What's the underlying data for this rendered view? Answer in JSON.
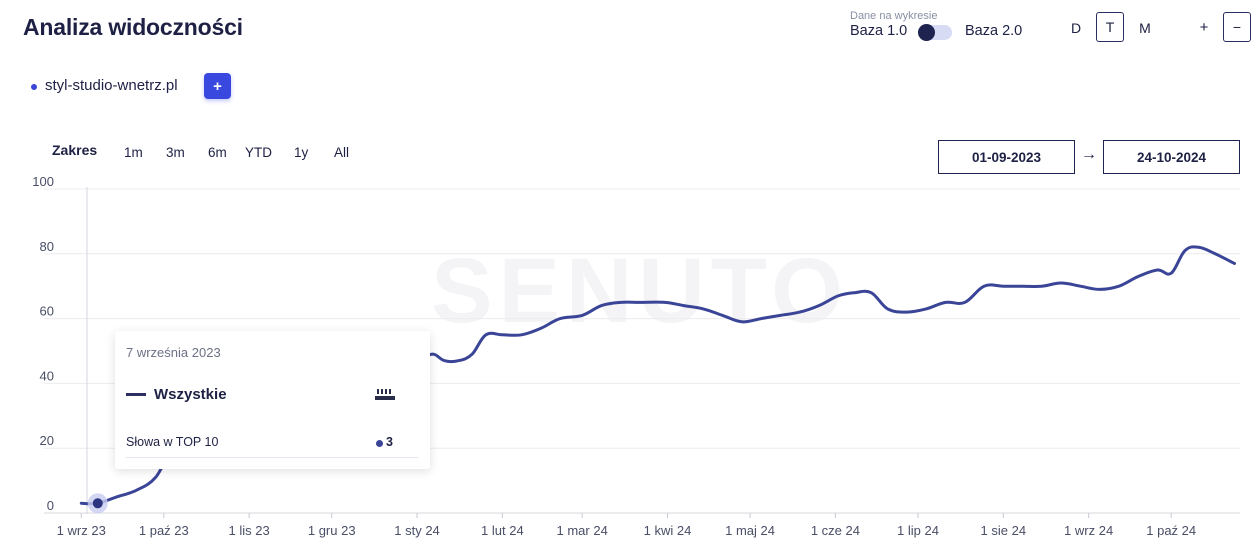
{
  "header": {
    "title": "Analiza widoczności",
    "data_on_chart_label": "Dane na wykresie",
    "base1_label": "Baza 1.0",
    "base2_label": "Baza 2.0",
    "granularity": {
      "d": "D",
      "t": "T",
      "m": "M",
      "selected": "T"
    },
    "zoom_in": "+",
    "zoom_out": "−"
  },
  "domain": {
    "name": "styl-studio-wnetrz.pl",
    "dot_color": "#3b46d8",
    "add_label": "+"
  },
  "range": {
    "label": "Zakres",
    "options": [
      "1m",
      "3m",
      "6m",
      "YTD",
      "1y",
      "All"
    ],
    "date_from": "01-09-2023",
    "date_to": "24-10-2024",
    "arrow": "→"
  },
  "tooltip": {
    "date": "7 września 2023",
    "series_name": "Wszystkie",
    "metric_label": "Słowa w TOP 10",
    "metric_value": "3"
  },
  "chart_data": {
    "type": "line",
    "ylim": [
      0,
      100
    ],
    "y_ticks": [
      0,
      20,
      40,
      60,
      80,
      100
    ],
    "x_tick_labels": [
      "1 wrz 23",
      "1 paź 23",
      "1 lis 23",
      "1 gru 23",
      "1 sty 24",
      "1 lut 24",
      "1 mar 24",
      "1 kwi 24",
      "1 maj 24",
      "1 cze 24",
      "1 lip 24",
      "1 sie 24",
      "1 wrz 24",
      "1 paź 24"
    ],
    "grid": true,
    "line_color": "#3a4597",
    "watermark": "SENUTO",
    "series": [
      {
        "name": "Wszystkie",
        "x": [
          "2023-09-01",
          "2023-09-07",
          "2023-09-14",
          "2023-09-21",
          "2023-09-28",
          "2023-10-04",
          "2023-10-10",
          "2023-10-16",
          "2023-10-22",
          "2023-10-28",
          "2023-11-03",
          "2023-11-09",
          "2023-11-15",
          "2023-11-22",
          "2023-11-29",
          "2023-12-06",
          "2023-12-13",
          "2023-12-20",
          "2023-12-27",
          "2024-01-03",
          "2024-01-07",
          "2024-01-11",
          "2024-01-16",
          "2024-01-21",
          "2024-01-26",
          "2024-02-01",
          "2024-02-08",
          "2024-02-15",
          "2024-02-22",
          "2024-03-01",
          "2024-03-08",
          "2024-03-15",
          "2024-03-22",
          "2024-03-31",
          "2024-04-07",
          "2024-04-14",
          "2024-04-21",
          "2024-04-28",
          "2024-05-05",
          "2024-05-12",
          "2024-05-19",
          "2024-05-26",
          "2024-06-02",
          "2024-06-08",
          "2024-06-14",
          "2024-06-20",
          "2024-06-27",
          "2024-07-04",
          "2024-07-11",
          "2024-07-18",
          "2024-07-25",
          "2024-08-01",
          "2024-08-08",
          "2024-08-15",
          "2024-08-22",
          "2024-08-29",
          "2024-09-05",
          "2024-09-12",
          "2024-09-19",
          "2024-09-26",
          "2024-10-01",
          "2024-10-06",
          "2024-10-11",
          "2024-10-17",
          "2024-10-24"
        ],
        "y": [
          3,
          3,
          5,
          7,
          11,
          20,
          25,
          28,
          30,
          31,
          32,
          32,
          32,
          38,
          42,
          44,
          45,
          45,
          46,
          48,
          49,
          47,
          47,
          49,
          55,
          55,
          55,
          57,
          60,
          61,
          64,
          65,
          65,
          65,
          64,
          63,
          61,
          59,
          60,
          61,
          62,
          64,
          67,
          68,
          68,
          63,
          62,
          63,
          65,
          65,
          70,
          70,
          70,
          70,
          71,
          70,
          69,
          70,
          73,
          75,
          74,
          81,
          82,
          80,
          77
        ]
      }
    ]
  }
}
